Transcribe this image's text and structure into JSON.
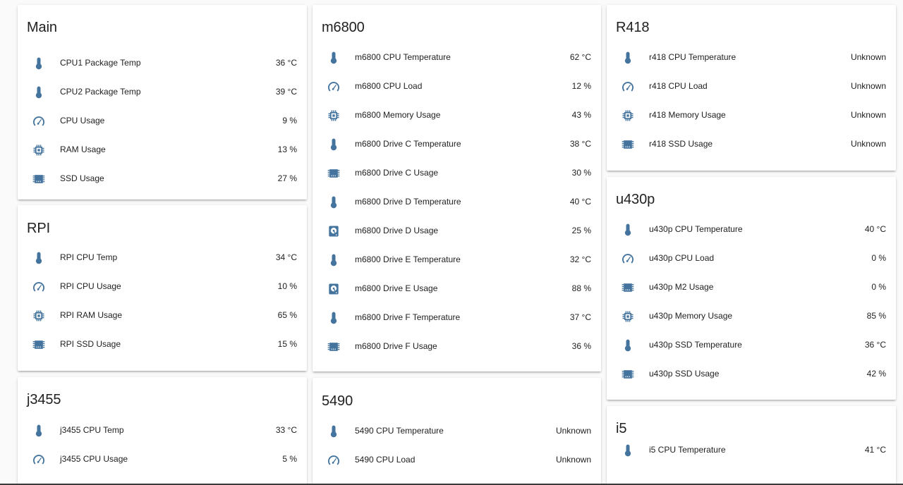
{
  "theme": {
    "icon_color": "#44739e",
    "card_background": "#ffffff",
    "page_background": "#fafafa"
  },
  "cards": {
    "main": {
      "title": "Main",
      "rows": [
        {
          "icon": "thermometer-icon",
          "label": "CPU1 Package Temp",
          "value": "36 °C"
        },
        {
          "icon": "thermometer-icon",
          "label": "CPU2 Package Temp",
          "value": "39 °C"
        },
        {
          "icon": "gauge-icon",
          "label": "CPU Usage",
          "value": "9 %"
        },
        {
          "icon": "chip-icon",
          "label": "RAM Usage",
          "value": "13 %"
        },
        {
          "icon": "memory-icon",
          "label": "SSD Usage",
          "value": "27 %"
        }
      ]
    },
    "rpi": {
      "title": "RPI",
      "rows": [
        {
          "icon": "thermometer-icon",
          "label": "RPI CPU Temp",
          "value": "34 °C"
        },
        {
          "icon": "gauge-icon",
          "label": "RPI CPU Usage",
          "value": "10 %"
        },
        {
          "icon": "chip-icon",
          "label": "RPI RAM Usage",
          "value": "65 %"
        },
        {
          "icon": "memory-icon",
          "label": "RPI SSD Usage",
          "value": "15 %"
        }
      ]
    },
    "j3455": {
      "title": "j3455",
      "rows": [
        {
          "icon": "thermometer-icon",
          "label": "j3455 CPU Temp",
          "value": "33 °C"
        },
        {
          "icon": "gauge-icon",
          "label": "j3455 CPU Usage",
          "value": "5 %"
        }
      ]
    },
    "m6800": {
      "title": "m6800",
      "rows": [
        {
          "icon": "thermometer-icon",
          "label": "m6800 CPU Temperature",
          "value": "62 °C"
        },
        {
          "icon": "gauge-icon",
          "label": "m6800 CPU Load",
          "value": "12 %"
        },
        {
          "icon": "chip-icon",
          "label": "m6800 Memory Usage",
          "value": "43 %"
        },
        {
          "icon": "thermometer-icon",
          "label": "m6800 Drive C Temperature",
          "value": "38 °C"
        },
        {
          "icon": "memory-icon",
          "label": "m6800 Drive C Usage",
          "value": "30 %"
        },
        {
          "icon": "thermometer-icon",
          "label": "m6800 Drive D Temperature",
          "value": "40 °C"
        },
        {
          "icon": "harddisk-icon",
          "label": "m6800 Drive D Usage",
          "value": "25 %"
        },
        {
          "icon": "thermometer-icon",
          "label": "m6800 Drive E Temperature",
          "value": "32 °C"
        },
        {
          "icon": "harddisk-icon",
          "label": "m6800 Drive E Usage",
          "value": "88 %"
        },
        {
          "icon": "thermometer-icon",
          "label": "m6800 Drive F Temperature",
          "value": "37 °C"
        },
        {
          "icon": "memory-icon",
          "label": "m6800 Drive F Usage",
          "value": "36 %"
        }
      ]
    },
    "d5490": {
      "title": "5490",
      "rows": [
        {
          "icon": "thermometer-icon",
          "label": "5490 CPU Temperature",
          "value": "Unknown"
        },
        {
          "icon": "gauge-icon",
          "label": "5490 CPU Load",
          "value": "Unknown"
        }
      ]
    },
    "r418": {
      "title": "R418",
      "rows": [
        {
          "icon": "thermometer-icon",
          "label": "r418 CPU Temperature",
          "value": "Unknown"
        },
        {
          "icon": "gauge-icon",
          "label": "r418 CPU Load",
          "value": "Unknown"
        },
        {
          "icon": "chip-icon",
          "label": "r418 Memory Usage",
          "value": "Unknown"
        },
        {
          "icon": "memory-icon",
          "label": "r418 SSD Usage",
          "value": "Unknown"
        }
      ]
    },
    "u430p": {
      "title": "u430p",
      "rows": [
        {
          "icon": "thermometer-icon",
          "label": "u430p CPU Temperature",
          "value": "40 °C"
        },
        {
          "icon": "gauge-icon",
          "label": "u430p CPU Load",
          "value": "0 %"
        },
        {
          "icon": "memory-icon",
          "label": "u430p M2 Usage",
          "value": "0 %"
        },
        {
          "icon": "chip-icon",
          "label": "u430p Memory Usage",
          "value": "85 %"
        },
        {
          "icon": "thermometer-icon",
          "label": "u430p SSD Temperature",
          "value": "36 °C"
        },
        {
          "icon": "memory-icon",
          "label": "u430p SSD Usage",
          "value": "42 %"
        }
      ]
    },
    "i5": {
      "title": "i5",
      "rows": [
        {
          "icon": "thermometer-icon",
          "label": "i5 CPU Temperature",
          "value": "41 °C"
        }
      ]
    }
  }
}
